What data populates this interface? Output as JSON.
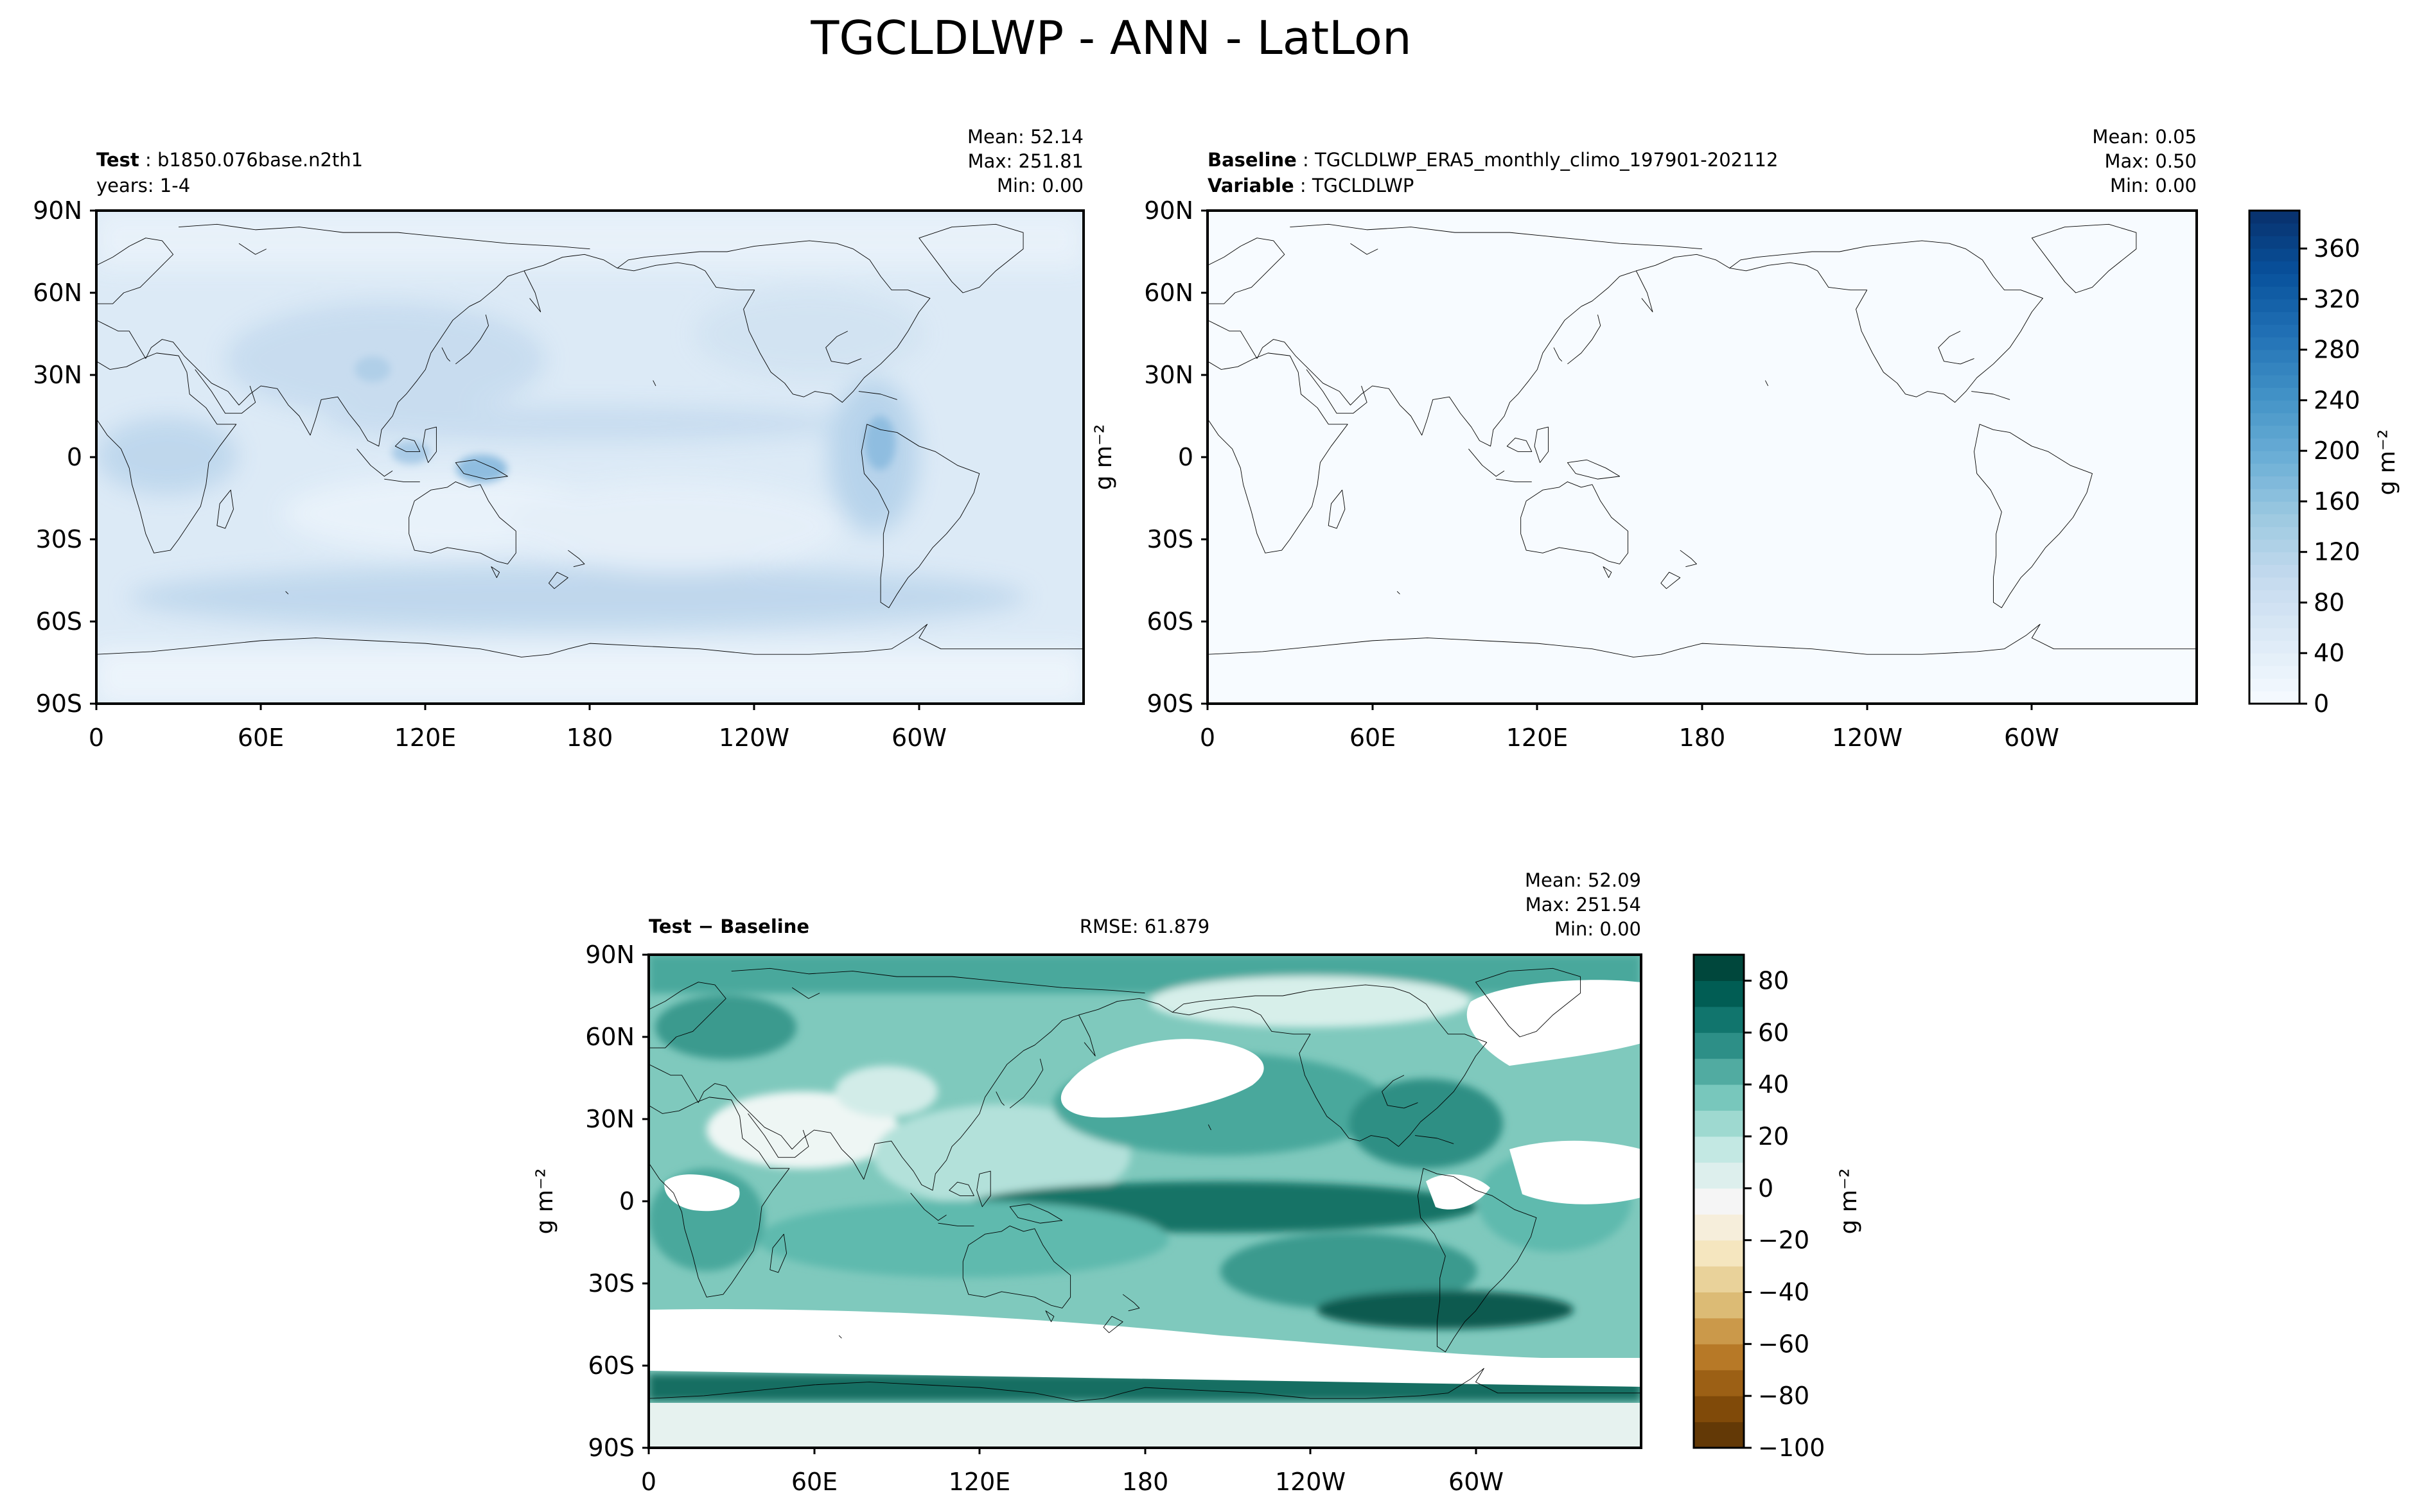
{
  "suptitle": "TGCLDLWP - ANN - LatLon",
  "colors": {
    "test_palette": [
      "#f7fbff",
      "#deebf7",
      "#c6dbef",
      "#9ecae1",
      "#6baed6",
      "#4292c6",
      "#2171b5",
      "#08519c",
      "#08306b"
    ],
    "diff_palette": [
      "#543005",
      "#8c510a",
      "#bf812d",
      "#dfc27d",
      "#f6e8c3",
      "#f5f5f5",
      "#c7eae5",
      "#80cdc1",
      "#35978f",
      "#01665e",
      "#003c30"
    ],
    "coast": "#000000",
    "masked": "#ffffff"
  },
  "chart_data": [
    {
      "type": "heatmap",
      "panel": "test",
      "label_bold": "Test",
      "label_value": "b1850.076base.n2th1",
      "sub_label": "years: 1-4",
      "stats": [
        "Mean: 52.14",
        "Max: 251.81",
        "Min:  0.00"
      ],
      "x_ticks": [
        "0",
        "60E",
        "120E",
        "180",
        "120W",
        "60W"
      ],
      "y_ticks": [
        "90N",
        "60N",
        "30N",
        "0",
        "30S",
        "60S",
        "90S"
      ],
      "xlim": [
        0,
        360
      ],
      "ylim": [
        -90,
        90
      ],
      "units": "g m⁻²",
      "mean": 52.14,
      "max": 251.81,
      "min": 0.0
    },
    {
      "type": "heatmap",
      "panel": "baseline",
      "label_bold": "Baseline",
      "label_value": "TGCLDLWP_ERA5_monthly_climo_197901-202112",
      "label2_bold": "Variable",
      "label2_value": "TGCLDLWP",
      "stats": [
        "Mean:  0.05",
        "Max:  0.50",
        "Min:  0.00"
      ],
      "x_ticks": [
        "0",
        "60E",
        "120E",
        "180",
        "120W",
        "60W"
      ],
      "y_ticks": [
        "90N",
        "60N",
        "30N",
        "0",
        "30S",
        "60S",
        "90S"
      ],
      "xlim": [
        0,
        360
      ],
      "ylim": [
        -90,
        90
      ],
      "units": "g m⁻²",
      "mean": 0.05,
      "max": 0.5,
      "min": 0.0,
      "colorbar": {
        "ticks": [
          "0",
          "40",
          "80",
          "120",
          "160",
          "200",
          "240",
          "280",
          "320",
          "360"
        ],
        "range": [
          0,
          390
        ],
        "label": "g m⁻²"
      }
    },
    {
      "type": "heatmap",
      "panel": "difference",
      "label_bold": "Test − Baseline",
      "rmse": "RMSE: 61.879",
      "stats": [
        "Mean: 52.09",
        "Max: 251.54",
        "Min:  0.00"
      ],
      "x_ticks": [
        "0",
        "60E",
        "120E",
        "180",
        "120W",
        "60W"
      ],
      "y_ticks": [
        "90N",
        "60N",
        "30N",
        "0",
        "30S",
        "60S",
        "90S"
      ],
      "xlim": [
        0,
        360
      ],
      "ylim": [
        -90,
        90
      ],
      "units": "g m⁻²",
      "mean": 52.09,
      "max": 251.54,
      "min": 0.0,
      "colorbar": {
        "ticks": [
          "80",
          "60",
          "40",
          "20",
          "0",
          "−20",
          "−40",
          "−60",
          "−80",
          "−100"
        ],
        "range": [
          -100,
          90
        ],
        "label": "g m⁻²"
      }
    }
  ]
}
